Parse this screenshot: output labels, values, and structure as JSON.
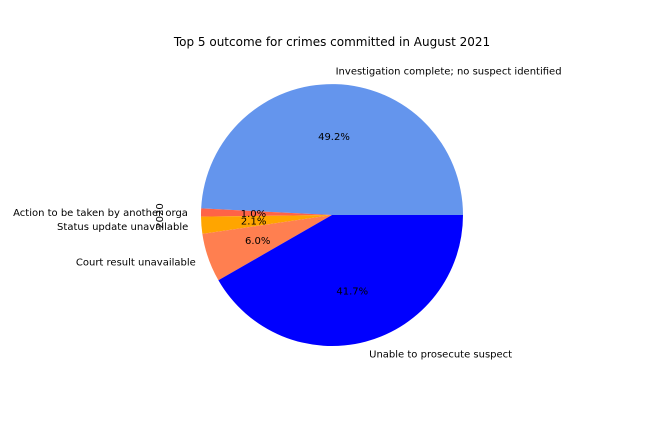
{
  "chart_data": {
    "type": "pie",
    "title": "Top 5 outcome for crimes committed in August 2021",
    "ylabel": "2020",
    "labels": [
      "Investigation complete; no suspect identified",
      "Action to be taken by another orga",
      "Status update unavailable",
      "Court result unavailable",
      "Unable to prosecute suspect"
    ],
    "values": [
      49.2,
      1.0,
      2.1,
      6.0,
      41.7
    ],
    "percent_labels": [
      "49.2%",
      "1.0%",
      "2.1%",
      "6.0%",
      "41.7%"
    ],
    "colors": [
      "#6495ED",
      "#FF6347",
      "#FFA500",
      "#FF7F50",
      "#0000FF"
    ],
    "start_angle_deg": 0,
    "direction": "counterclockwise"
  }
}
